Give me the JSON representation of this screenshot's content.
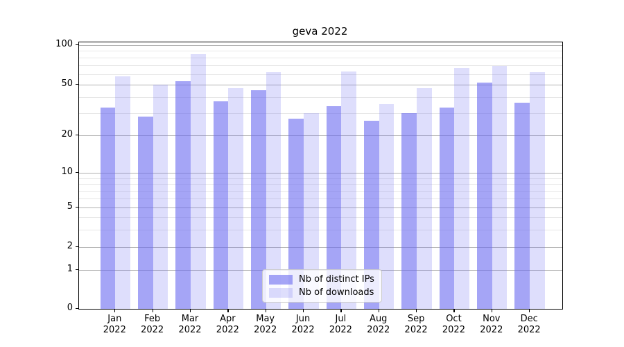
{
  "title": "geva 2022",
  "legend": {
    "items": [
      {
        "label": "Nb of distinct IPs",
        "color": "rgba(105,105,240,0.60)"
      },
      {
        "label": "Nb of downloads",
        "color": "rgba(105,105,240,0.22)"
      }
    ],
    "position": "lower center"
  },
  "colors": {
    "bar_base": "#6969f0",
    "bar_strong_alpha": 0.6,
    "bar_light_alpha": 0.22,
    "grid_major": "#b0b0b0",
    "grid_minor": "#e7e7e7",
    "axis": "#000000",
    "background": "#ffffff"
  },
  "chart_data": {
    "type": "bar",
    "title": "geva 2022",
    "categories": [
      "Jan",
      "Feb",
      "Mar",
      "Apr",
      "May",
      "Jun",
      "Jul",
      "Aug",
      "Sep",
      "Oct",
      "Nov",
      "Dec"
    ],
    "category_year": "2022",
    "series": [
      {
        "name": "Nb of distinct IPs",
        "color": "rgba(105,105,240,0.60)",
        "values": [
          33,
          28,
          53,
          37,
          45,
          27,
          34,
          26,
          30,
          33,
          52,
          36
        ]
      },
      {
        "name": "Nb of downloads",
        "color": "rgba(105,105,240,0.22)",
        "values": [
          58,
          50,
          85,
          47,
          62,
          30,
          63,
          35,
          47,
          67,
          69,
          62
        ]
      }
    ],
    "xlabel": "",
    "ylabel": "",
    "yscale": "symlog",
    "yticks": [
      0,
      1,
      2,
      5,
      10,
      20,
      50,
      100
    ],
    "yminorticks": [
      3,
      4,
      6,
      7,
      8,
      9,
      30,
      40,
      60,
      70,
      80,
      90
    ],
    "ylim": [
      0,
      105
    ],
    "grid": true,
    "legend_position": "lower center"
  }
}
